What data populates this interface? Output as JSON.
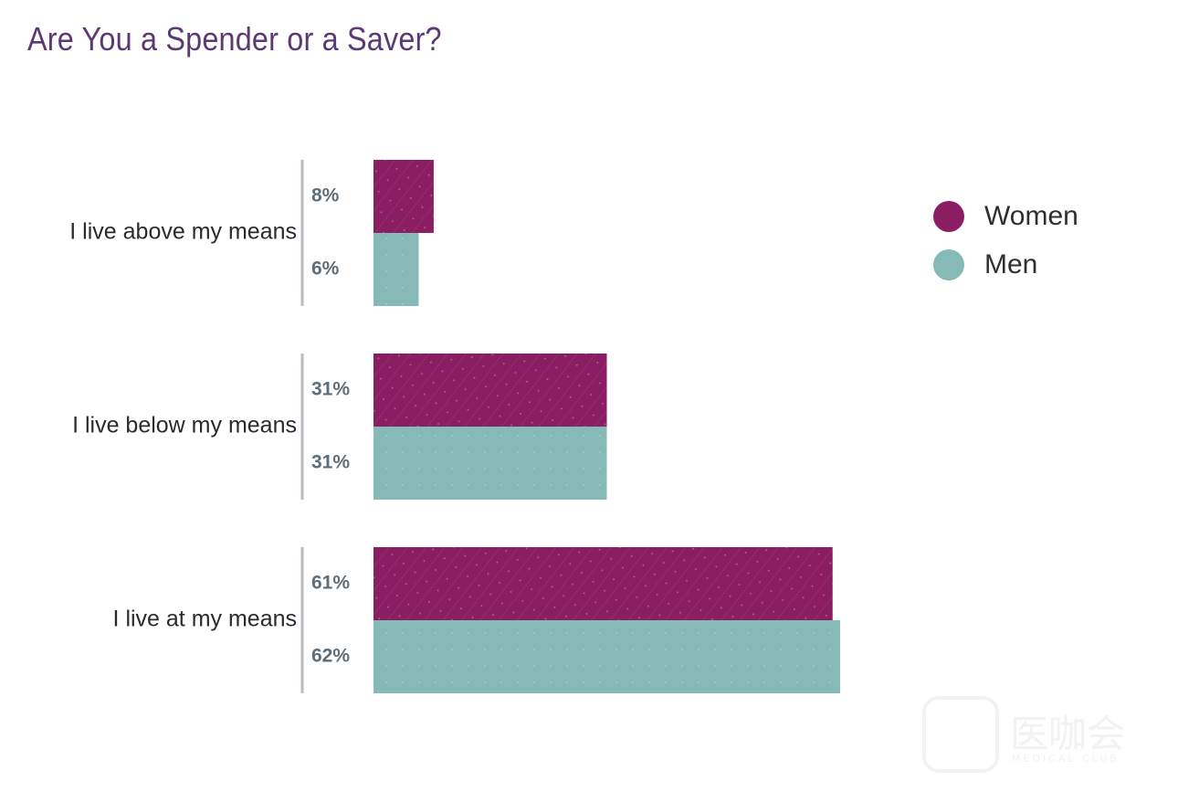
{
  "chart_data": {
    "type": "bar",
    "orientation": "horizontal",
    "title": "Are You a Spender or a Saver?",
    "categories": [
      "I live above my means",
      "I live below my means",
      "I live at my means"
    ],
    "series": [
      {
        "name": "Women",
        "color": "#8b1e63",
        "values": [
          8,
          31,
          61
        ],
        "labels": [
          "8%",
          "31%",
          "61%"
        ]
      },
      {
        "name": "Men",
        "color": "#85bab7",
        "values": [
          6,
          31,
          62
        ],
        "labels": [
          "6%",
          "31%",
          "62%"
        ]
      }
    ],
    "xlim": [
      0,
      62
    ],
    "xlabel": "",
    "ylabel": "",
    "grid": false,
    "legend_position": "right"
  },
  "watermark": {
    "text": "医咖会",
    "subtext": "MEDICAL CLUB"
  }
}
